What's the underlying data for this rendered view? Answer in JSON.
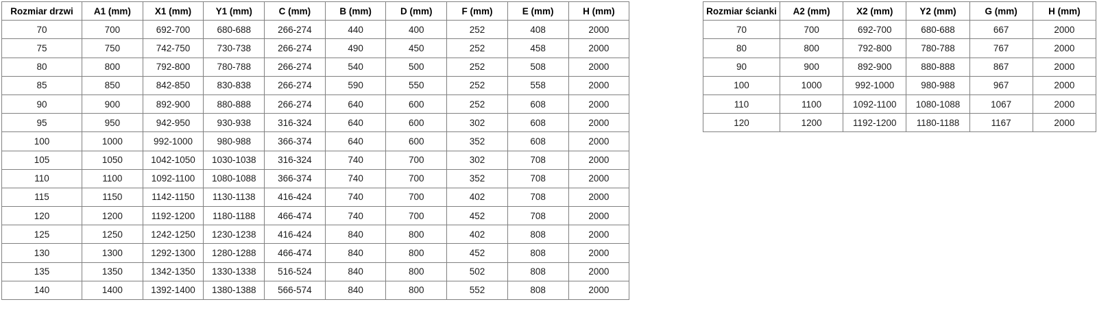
{
  "page": {
    "background_color": "#ffffff",
    "inner_border_color": "#808080",
    "outer_border_color": "#595959",
    "text_color": "#1a1a1a"
  },
  "door_table": {
    "headers": [
      "Rozmiar drzwi",
      "A1 (mm)",
      "X1 (mm)",
      "Y1 (mm)",
      "C (mm)",
      "B (mm)",
      "D (mm)",
      "F (mm)",
      "E (mm)",
      "H (mm)"
    ],
    "rows": [
      [
        "70",
        "700",
        "692-700",
        "680-688",
        "266-274",
        "440",
        "400",
        "252",
        "408",
        "2000"
      ],
      [
        "75",
        "750",
        "742-750",
        "730-738",
        "266-274",
        "490",
        "450",
        "252",
        "458",
        "2000"
      ],
      [
        "80",
        "800",
        "792-800",
        "780-788",
        "266-274",
        "540",
        "500",
        "252",
        "508",
        "2000"
      ],
      [
        "85",
        "850",
        "842-850",
        "830-838",
        "266-274",
        "590",
        "550",
        "252",
        "558",
        "2000"
      ],
      [
        "90",
        "900",
        "892-900",
        "880-888",
        "266-274",
        "640",
        "600",
        "252",
        "608",
        "2000"
      ],
      [
        "95",
        "950",
        "942-950",
        "930-938",
        "316-324",
        "640",
        "600",
        "302",
        "608",
        "2000"
      ],
      [
        "100",
        "1000",
        "992-1000",
        "980-988",
        "366-374",
        "640",
        "600",
        "352",
        "608",
        "2000"
      ],
      [
        "105",
        "1050",
        "1042-1050",
        "1030-1038",
        "316-324",
        "740",
        "700",
        "302",
        "708",
        "2000"
      ],
      [
        "110",
        "1100",
        "1092-1100",
        "1080-1088",
        "366-374",
        "740",
        "700",
        "352",
        "708",
        "2000"
      ],
      [
        "115",
        "1150",
        "1142-1150",
        "1130-1138",
        "416-424",
        "740",
        "700",
        "402",
        "708",
        "2000"
      ],
      [
        "120",
        "1200",
        "1192-1200",
        "1180-1188",
        "466-474",
        "740",
        "700",
        "452",
        "708",
        "2000"
      ],
      [
        "125",
        "1250",
        "1242-1250",
        "1230-1238",
        "416-424",
        "840",
        "800",
        "402",
        "808",
        "2000"
      ],
      [
        "130",
        "1300",
        "1292-1300",
        "1280-1288",
        "466-474",
        "840",
        "800",
        "452",
        "808",
        "2000"
      ],
      [
        "135",
        "1350",
        "1342-1350",
        "1330-1338",
        "516-524",
        "840",
        "800",
        "502",
        "808",
        "2000"
      ],
      [
        "140",
        "1400",
        "1392-1400",
        "1380-1388",
        "566-574",
        "840",
        "800",
        "552",
        "808",
        "2000"
      ]
    ]
  },
  "wall_table": {
    "headers": [
      "Rozmiar ścianki",
      "A2 (mm)",
      "X2 (mm)",
      "Y2 (mm)",
      "G (mm)",
      "H (mm)"
    ],
    "rows": [
      [
        "70",
        "700",
        "692-700",
        "680-688",
        "667",
        "2000"
      ],
      [
        "80",
        "800",
        "792-800",
        "780-788",
        "767",
        "2000"
      ],
      [
        "90",
        "900",
        "892-900",
        "880-888",
        "867",
        "2000"
      ],
      [
        "100",
        "1000",
        "992-1000",
        "980-988",
        "967",
        "2000"
      ],
      [
        "110",
        "1100",
        "1092-1100",
        "1080-1088",
        "1067",
        "2000"
      ],
      [
        "120",
        "1200",
        "1192-1200",
        "1180-1188",
        "1167",
        "2000"
      ]
    ]
  }
}
